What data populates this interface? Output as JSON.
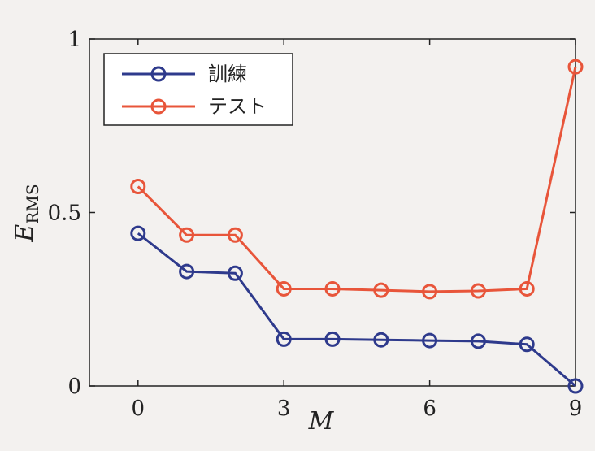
{
  "chart_data": {
    "type": "line",
    "xlabel": "M",
    "ylabel": {
      "main": "E",
      "subscript": "RMS"
    },
    "xlim": [
      -1,
      9
    ],
    "ylim": [
      0,
      1
    ],
    "xticks": [
      0,
      3,
      6,
      9
    ],
    "yticks": [
      0,
      0.5,
      1
    ],
    "xtick_labels": [
      "0",
      "3",
      "6",
      "9"
    ],
    "ytick_labels": [
      "0",
      "0.5",
      "1"
    ],
    "grid": false,
    "legend_position": "top-left",
    "x": [
      0,
      1,
      2,
      3,
      4,
      5,
      6,
      7,
      8,
      9
    ],
    "series": [
      {
        "name": "訓練",
        "color": "#2e3a8c",
        "marker": "circle-open",
        "values": [
          0.44,
          0.33,
          0.325,
          0.135,
          0.135,
          0.133,
          0.131,
          0.129,
          0.12,
          0.0
        ]
      },
      {
        "name": "テスト",
        "color": "#e8553a",
        "marker": "circle-open",
        "values": [
          0.575,
          0.435,
          0.435,
          0.28,
          0.28,
          0.276,
          0.272,
          0.274,
          0.28,
          0.92
        ]
      }
    ]
  }
}
